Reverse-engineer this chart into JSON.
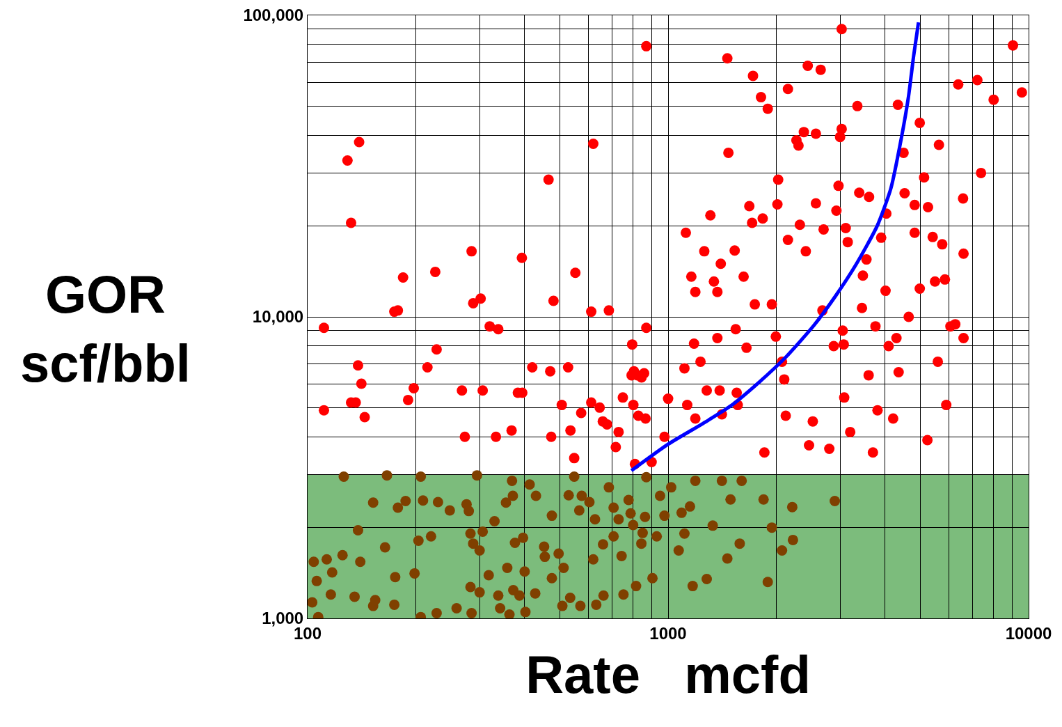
{
  "chart_data": {
    "type": "scatter",
    "xlabel": "Rate   mcfd",
    "ylabel": "GOR\nscf/bbl",
    "log": "xy",
    "grid": true,
    "marker": "circle",
    "xlim": [
      100,
      10000
    ],
    "ylim": [
      1000,
      100000
    ],
    "xticks": [
      100,
      {
        "value": 200,
        "label": null
      },
      {
        "value": 300,
        "label": null
      },
      {
        "value": 400,
        "label": null
      },
      {
        "value": 500,
        "label": null
      },
      {
        "value": 600,
        "label": null
      },
      {
        "value": 700,
        "label": null
      },
      {
        "value": 800,
        "label": null
      },
      {
        "value": 900,
        "label": null
      },
      1000,
      {
        "value": 2000,
        "label": null
      },
      {
        "value": 3000,
        "label": null
      },
      {
        "value": 4000,
        "label": null
      },
      {
        "value": 5000,
        "label": null
      },
      {
        "value": 6000,
        "label": null
      },
      {
        "value": 7000,
        "label": null
      },
      {
        "value": 8000,
        "label": null
      },
      {
        "value": 9000,
        "label": null
      },
      10000
    ],
    "yticks": [
      {
        "value": 1000,
        "label": "1,000"
      },
      {
        "value": 2000,
        "label": null
      },
      {
        "value": 3000,
        "label": null
      },
      {
        "value": 4000,
        "label": null
      },
      {
        "value": 5000,
        "label": null
      },
      {
        "value": 6000,
        "label": null
      },
      {
        "value": 7000,
        "label": null
      },
      {
        "value": 8000,
        "label": null
      },
      {
        "value": 9000,
        "label": null
      },
      {
        "value": 10000,
        "label": "10,000"
      },
      {
        "value": 20000,
        "label": null
      },
      {
        "value": 30000,
        "label": null
      },
      {
        "value": 40000,
        "label": null
      },
      {
        "value": 50000,
        "label": null
      },
      {
        "value": 60000,
        "label": null
      },
      {
        "value": 70000,
        "label": null
      },
      {
        "value": 80000,
        "label": null
      },
      {
        "value": 90000,
        "label": null
      },
      {
        "value": 100000,
        "label": "100,000"
      }
    ],
    "bands": [
      {
        "axis": "y",
        "from": 1000,
        "to": 3000,
        "color": "#7cbc7c"
      }
    ],
    "series": [
      {
        "color": "#ff0000",
        "x": [
          111,
          111,
          129,
          139,
          132,
          132,
          136,
          138,
          141,
          144,
          174,
          178,
          184,
          190,
          197,
          215,
          226,
          228,
          268,
          273,
          285,
          288,
          302,
          306,
          320,
          338,
          333,
          368,
          383,
          394,
          393,
          420,
          466,
          471,
          474,
          481,
          507,
          528,
          536,
          553,
          549,
          574,
          612,
          620,
          612,
          646,
          659,
          677,
          685,
          729,
          716,
          749,
          792,
          795,
          801,
          804,
          809,
          822,
          844,
          858,
          827,
          866,
          870,
          870,
          900,
          977,
          1000,
          1110,
          1130,
          1120,
          1160,
          1180,
          1190,
          1190,
          1230,
          1260,
          1280,
          1310,
          1340,
          1370,
          1370,
          1400,
          1390,
          1410,
          1460,
          1470,
          1530,
          1540,
          1550,
          1560,
          1620,
          1650,
          1680,
          1710,
          1720,
          1740,
          1810,
          1850,
          1890,
          1830,
          1940,
          1990,
          2020,
          2010,
          2070,
          2100,
          2120,
          2150,
          2150,
          2270,
          2300,
          2320,
          2380,
          2410,
          2440,
          2460,
          2520,
          2570,
          2570,
          2650,
          2680,
          2700,
          2800,
          2880,
          2930,
          2970,
          3030,
          3030,
          3000,
          3050,
          3070,
          3080,
          3110,
          3150,
          3200,
          3350,
          3390,
          3450,
          3470,
          3550,
          3610,
          3600,
          3700,
          3760,
          3810,
          3900,
          4030,
          4010,
          4090,
          4210,
          4340,
          4300,
          4360,
          4500,
          4530,
          4650,
          4830,
          4830,
          4990,
          4990,
          5130,
          5240,
          5260,
          5420,
          5500,
          5600,
          5640,
          5760,
          5860,
          5910,
          6070,
          6260,
          6380,
          6580,
          6600,
          6600,
          7210,
          7380,
          8000,
          9050,
          9580
        ],
        "values": [
          9200,
          4900,
          33000,
          38000,
          20500,
          5200,
          5200,
          6900,
          6000,
          4650,
          10400,
          10500,
          13500,
          5300,
          5800,
          6800,
          14100,
          7800,
          5700,
          4000,
          16500,
          11100,
          11500,
          5700,
          9300,
          9100,
          4000,
          4200,
          5600,
          5600,
          15700,
          6800,
          28500,
          6600,
          4000,
          11300,
          5100,
          6800,
          4200,
          14000,
          3400,
          4800,
          5200,
          37500,
          10400,
          5000,
          4500,
          4400,
          10500,
          4150,
          3700,
          5400,
          6400,
          8100,
          5100,
          6600,
          3250,
          6400,
          6300,
          6500,
          4700,
          4600,
          9200,
          79000,
          3300,
          4000,
          5350,
          6750,
          5100,
          19000,
          13600,
          8150,
          12100,
          4600,
          7100,
          16500,
          5700,
          21700,
          13100,
          8500,
          12100,
          15000,
          5700,
          4750,
          72000,
          35000,
          16600,
          9100,
          5600,
          5100,
          13600,
          7900,
          23300,
          20500,
          63000,
          11000,
          53500,
          3550,
          49000,
          21200,
          11000,
          8600,
          28500,
          23600,
          7100,
          6200,
          4700,
          57000,
          18000,
          38500,
          37000,
          20200,
          41000,
          16500,
          68000,
          3750,
          4500,
          40500,
          23800,
          66000,
          10500,
          19500,
          3650,
          8000,
          22500,
          27200,
          90000,
          42000,
          39500,
          9000,
          8100,
          5400,
          19700,
          17700,
          4150,
          50000,
          25800,
          10700,
          13700,
          15500,
          25000,
          6400,
          3550,
          9300,
          4900,
          18300,
          22000,
          12200,
          8000,
          4600,
          50500,
          8500,
          6550,
          35000,
          25700,
          10000,
          23500,
          19000,
          44000,
          12400,
          29000,
          3900,
          23100,
          18400,
          13100,
          7100,
          37200,
          17400,
          13300,
          5100,
          9300,
          9450,
          59000,
          24700,
          8500,
          16200,
          61000,
          30000,
          52500,
          79500,
          55500
        ]
      },
      {
        "color": "#7f4000",
        "x": [
          103,
          104,
          106,
          107,
          113,
          116,
          117,
          125,
          126,
          135,
          138,
          140,
          152,
          154,
          152,
          164,
          166,
          174,
          175,
          178,
          187,
          198,
          203,
          206,
          206,
          209,
          220,
          228,
          230,
          248,
          259,
          276,
          280,
          283,
          283,
          285,
          288,
          295,
          300,
          306,
          300,
          318,
          330,
          338,
          342,
          355,
          358,
          363,
          369,
          371,
          372,
          376,
          387,
          396,
          400,
          402,
          413,
          430,
          428,
          453,
          455,
          476,
          476,
          497,
          509,
          513,
          530,
          535,
          549,
          567,
          571,
          576,
          605,
          620,
          627,
          632,
          660,
          662,
          685,
          706,
          706,
          729,
          743,
          752,
          777,
          787,
          800,
          815,
          843,
          850,
          863,
          870,
          905,
          930,
          950,
          977,
          1020,
          1070,
          1090,
          1110,
          1150,
          1170,
          1190,
          1280,
          1330,
          1410,
          1460,
          1490,
          1580,
          1600,
          1840,
          1890,
          1940,
          2070,
          2210,
          2220,
          2900
        ],
        "values": [
          1130,
          1540,
          1330,
          1010,
          1570,
          1200,
          1420,
          1620,
          2950,
          1180,
          1960,
          1540,
          1100,
          1150,
          2420,
          1720,
          2980,
          1110,
          1370,
          2330,
          2450,
          1410,
          1810,
          2950,
          1010,
          2460,
          1870,
          1040,
          2430,
          2280,
          1080,
          2390,
          2270,
          1910,
          1270,
          1040,
          1770,
          2980,
          1680,
          1940,
          1220,
          1390,
          2100,
          1190,
          1080,
          2420,
          1470,
          1030,
          2860,
          2550,
          1240,
          1780,
          1190,
          1850,
          1430,
          1050,
          2780,
          2550,
          1210,
          1730,
          1600,
          2190,
          1360,
          1640,
          1100,
          1470,
          2560,
          1170,
          2950,
          2280,
          1100,
          2550,
          2430,
          1570,
          2130,
          1110,
          1760,
          1190,
          2720,
          2330,
          1870,
          2130,
          1610,
          1200,
          2470,
          2230,
          2040,
          1280,
          1770,
          1920,
          2170,
          2940,
          1360,
          1870,
          2550,
          2190,
          2720,
          1680,
          2240,
          1910,
          2350,
          1280,
          2860,
          1350,
          2030,
          2860,
          1580,
          2480,
          1770,
          2860,
          2480,
          1320,
          2000,
          1680,
          2340,
          1820,
          2450
        ]
      },
      {
        "type": "line",
        "color": "#0000ff",
        "marker": "none",
        "line_style": "solid",
        "x": [
          791,
          1000,
          1250,
          1490,
          1780,
          2130,
          2540,
          2910,
          3320,
          3800,
          4150,
          4430,
          4640,
          4800,
          4950
        ],
        "values": [
          3090,
          3780,
          4430,
          5060,
          6040,
          7390,
          9380,
          11700,
          14900,
          20000,
          26700,
          38800,
          53400,
          73500,
          94800
        ]
      }
    ]
  }
}
